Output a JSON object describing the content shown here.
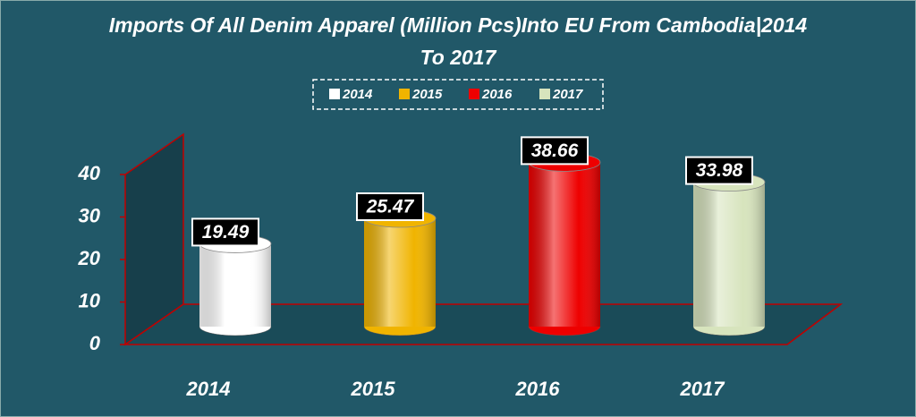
{
  "chart_data": {
    "type": "bar",
    "title": "Imports Of All Denim Apparel (Million Pcs)Into EU From Cambodia|2014 To 2017",
    "categories": [
      "2014",
      "2015",
      "2016",
      "2017"
    ],
    "values": [
      19.49,
      25.47,
      38.66,
      33.98
    ],
    "colors": [
      "#ffffff",
      "#f0b400",
      "#ee0000",
      "#d7e4bd"
    ],
    "ylim": [
      0,
      40
    ],
    "yticks": [
      0,
      10,
      20,
      30,
      40
    ]
  }
}
